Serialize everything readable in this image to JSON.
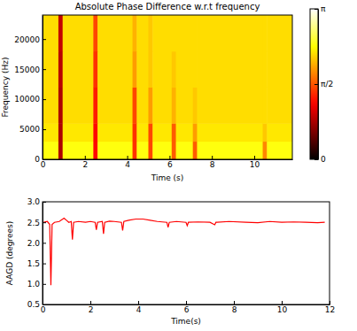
{
  "chart_data": [
    {
      "type": "heatmap",
      "title": "Absolute Phase Difference w.r.t frequency",
      "x_label": "Time (s)",
      "y_label": "Frequency (Hz)",
      "bins_x": [
        0,
        0.75,
        0.95,
        2.4,
        2.6,
        4.25,
        4.45,
        5.0,
        5.2,
        6.1,
        6.3,
        7.1,
        7.3,
        10.4,
        10.6,
        11.8
      ],
      "bins_y": [
        0,
        3000,
        6000,
        12000,
        18000,
        24000
      ],
      "values": [
        [
          2.4,
          0.8,
          2.4,
          1.2,
          2.4,
          1.4,
          2.4,
          1.5,
          2.4,
          1.6,
          2.4,
          1.6,
          2.4,
          1.8,
          2.4
        ],
        [
          2.25,
          0.8,
          2.25,
          1.2,
          2.25,
          1.4,
          2.25,
          1.5,
          2.25,
          1.6,
          2.25,
          1.9,
          2.25,
          2.1,
          2.25
        ],
        [
          2.2,
          0.8,
          2.2,
          1.3,
          2.2,
          1.5,
          2.2,
          1.9,
          2.2,
          2.0,
          2.2,
          2.1,
          2.2,
          2.2,
          2.2
        ],
        [
          2.2,
          0.85,
          2.2,
          1.4,
          2.2,
          1.9,
          2.2,
          2.1,
          2.2,
          2.1,
          2.2,
          2.2,
          2.2,
          2.2,
          2.2
        ],
        [
          2.2,
          0.9,
          2.2,
          1.5,
          2.2,
          2.0,
          2.2,
          2.1,
          2.2,
          2.2,
          2.2,
          2.2,
          2.2,
          2.2,
          2.2
        ]
      ],
      "xlim": [
        0,
        11.8
      ],
      "ylim": [
        0,
        24000
      ],
      "xticks": [
        0,
        2,
        4,
        6,
        8,
        10
      ],
      "yticks": [
        0,
        5000,
        10000,
        15000,
        20000
      ],
      "colorbar": {
        "range": [
          0,
          3.1416
        ],
        "ticks": [
          0,
          {
            "value": 1.5708,
            "label": "π/2"
          },
          {
            "value": 3.1416,
            "label": "π"
          }
        ]
      }
    },
    {
      "type": "line",
      "x_label": "Time(s)",
      "y_label": "AAGD (degrees)",
      "x": [
        0.05,
        0.2,
        0.3,
        0.35,
        0.4,
        0.5,
        0.7,
        0.9,
        1.0,
        1.1,
        1.2,
        1.25,
        1.3,
        1.5,
        1.8,
        2.0,
        2.2,
        2.25,
        2.3,
        2.5,
        2.55,
        2.6,
        2.8,
        3.0,
        3.3,
        3.35,
        3.4,
        3.6,
        3.9,
        4.2,
        4.5,
        4.8,
        5.2,
        5.25,
        5.3,
        5.6,
        6.0,
        6.05,
        6.1,
        6.5,
        7.0,
        7.2,
        7.25,
        7.3,
        7.8,
        8.5,
        9.0,
        9.5,
        10.0,
        10.5,
        11.0,
        11.5,
        11.8
      ],
      "series": [
        {
          "color": "#ff0000",
          "values": [
            2.5,
            2.52,
            2.45,
            0.97,
            2.45,
            2.5,
            2.52,
            2.6,
            2.55,
            2.5,
            2.52,
            2.08,
            2.5,
            2.52,
            2.5,
            2.52,
            2.5,
            2.32,
            2.5,
            2.52,
            2.22,
            2.5,
            2.53,
            2.52,
            2.5,
            2.3,
            2.52,
            2.55,
            2.58,
            2.58,
            2.55,
            2.52,
            2.5,
            2.38,
            2.5,
            2.52,
            2.5,
            2.42,
            2.5,
            2.51,
            2.5,
            2.44,
            2.5,
            2.5,
            2.52,
            2.5,
            2.49,
            2.52,
            2.5,
            2.51,
            2.5,
            2.49,
            2.5
          ]
        }
      ],
      "xlim": [
        0,
        12
      ],
      "ylim": [
        0.5,
        3.0
      ],
      "xticks": [
        0,
        2,
        4,
        6,
        8,
        10,
        12
      ],
      "yticks": [
        0.5,
        {
          "value": 1.0,
          "label": "1.0"
        },
        1.5,
        {
          "value": 2.0,
          "label": "2.0"
        },
        2.5,
        {
          "value": 3.0,
          "label": "3.0"
        }
      ]
    }
  ]
}
